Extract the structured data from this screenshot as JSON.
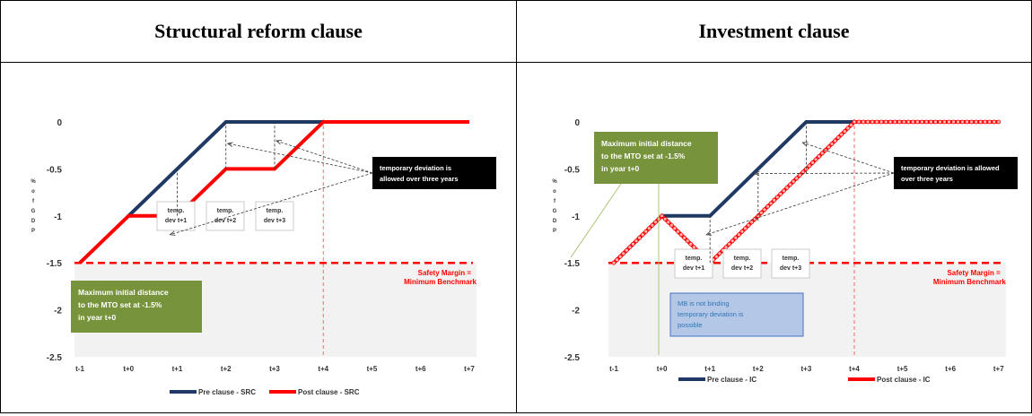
{
  "panels": [
    {
      "title": "Structural reform clause",
      "chart_data": {
        "type": "line",
        "x": [
          "t-1",
          "t+0",
          "t+1",
          "t+2",
          "t+3",
          "t+4",
          "t+5",
          "t+6",
          "t+7"
        ],
        "ylim": [
          -2.5,
          0
        ],
        "yticks": [
          "0",
          "-0.5",
          "-1",
          "-1.5",
          "-2",
          "-2.5"
        ],
        "ylabel": "% of GDP",
        "series": [
          {
            "name": "Pre clause - SRC",
            "color": "#1f3864",
            "points": [
              [
                "t+0",
                -1
              ],
              [
                "t+2",
                0
              ],
              [
                "t+4",
                0
              ]
            ]
          },
          {
            "name": "Post clause - SRC",
            "color": "#ff0000",
            "points": [
              [
                "t-1",
                -1.5
              ],
              [
                "t+0",
                -1
              ],
              [
                "t+1",
                -1
              ],
              [
                "t+2",
                -0.5
              ],
              [
                "t+3",
                -0.5
              ],
              [
                "t+4",
                0
              ],
              [
                "t+7",
                0
              ]
            ]
          }
        ],
        "benchmark": {
          "value": -1.5,
          "label_line1": "Safety Margin =",
          "label_line2": "Minimum Benchmark",
          "color": "#ff0000"
        },
        "vline_x": "t+4",
        "shaded_below": -1.5,
        "temp_labels": [
          {
            "line1": "temp.",
            "line2": "dev t+1"
          },
          {
            "line1": "temp.",
            "line2": "dev t+2"
          },
          {
            "line1": "temp.",
            "line2": "dev t+3"
          }
        ],
        "annotation_black": {
          "line1": "temporary deviation is",
          "line2": "allowed over three years"
        },
        "annotation_green": {
          "line1": "Maximum initial distance",
          "line2": "to the MTO set at -1.5%",
          "line3": "in year t+0"
        }
      }
    },
    {
      "title": "Investment clause",
      "chart_data": {
        "type": "line",
        "x": [
          "t-1",
          "t+0",
          "t+1",
          "t+2",
          "t+3",
          "t+4",
          "t+5",
          "t+6",
          "t+7"
        ],
        "ylim": [
          -2.5,
          0
        ],
        "yticks": [
          "0",
          "-0.5",
          "-1",
          "-1.5",
          "-2",
          "-2.5"
        ],
        "ylabel": "% of GDP",
        "series": [
          {
            "name": "Pre clause - IC",
            "color": "#1f3864",
            "points": [
              [
                "t-1",
                -1.5
              ],
              [
                "t+0",
                -1
              ],
              [
                "t+1",
                -1
              ],
              [
                "t+3",
                0
              ],
              [
                "t+4",
                0
              ]
            ]
          },
          {
            "name": "Post clause - IC",
            "color": "#ff0000",
            "points": [
              [
                "t-1",
                -1.5
              ],
              [
                "t+0",
                -1
              ],
              [
                "t+1",
                -1.5
              ],
              [
                "t+4",
                0
              ],
              [
                "t+7",
                0
              ]
            ]
          }
        ],
        "benchmark": {
          "value": -1.5,
          "label_line1": "Safety Margin =",
          "label_line2": "Minimum Benchmark",
          "color": "#ff0000"
        },
        "vline_x": "t+4",
        "shaded_below": -1.5,
        "temp_labels": [
          {
            "line1": "temp.",
            "line2": "dev t+1"
          },
          {
            "line1": "temp.",
            "line2": "dev t+2"
          },
          {
            "line1": "temp.",
            "line2": "dev t+3"
          }
        ],
        "annotation_black": {
          "line1": "temporary deviation is allowed",
          "line2": "over three years"
        },
        "annotation_green": {
          "line1": "Maximum initial distance",
          "line2": "to the MTO set at -1.5%",
          "line3": "in year t+0"
        },
        "annotation_blue": {
          "line1": "MB is not binding",
          "line2": "temporary deviation is",
          "line3": "possible"
        }
      }
    }
  ]
}
